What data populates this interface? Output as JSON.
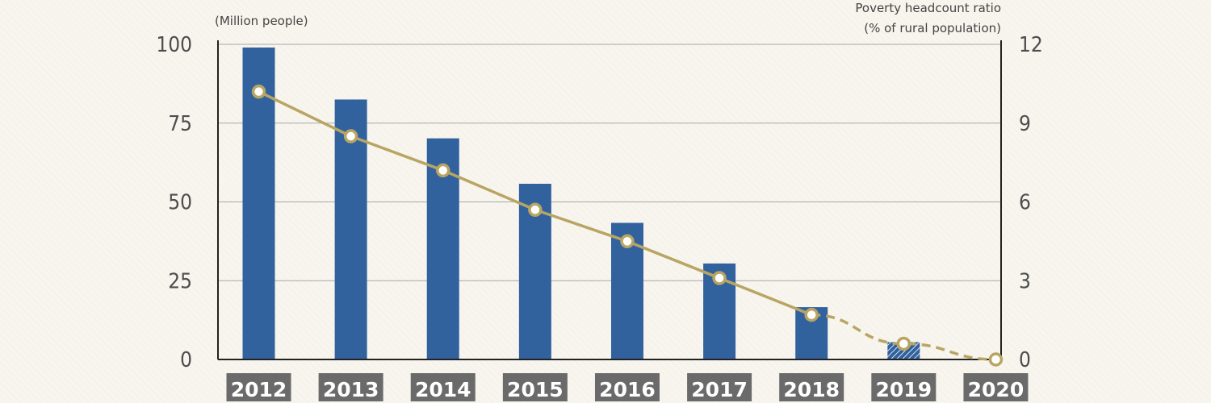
{
  "chart_data": {
    "type": "bar+line",
    "categories": [
      "2012",
      "2013",
      "2014",
      "2015",
      "2016",
      "2017",
      "2018",
      "2019",
      "2020"
    ],
    "left_axis": {
      "label": "(Million people)",
      "ticks": [
        "0",
        "25",
        "50",
        "75",
        "100"
      ],
      "ylim": [
        0,
        100
      ]
    },
    "right_axis": {
      "label_line1": "Poverty headcount ratio",
      "label_line2": "(% of rural population)",
      "ticks": [
        "0",
        "3",
        "6",
        "9",
        "12"
      ],
      "ylim": [
        0,
        12
      ]
    },
    "series": [
      {
        "kind": "bar",
        "values": [
          98.99,
          82.49,
          70.17,
          55.75,
          43.35,
          30.46,
          16.6,
          5.51,
          null
        ],
        "estimated_from_index": 7
      },
      {
        "kind": "line",
        "values": [
          10.2,
          8.5,
          7.2,
          5.7,
          4.5,
          3.1,
          1.7,
          0.6,
          0.0
        ],
        "dashed_from_index": 7
      }
    ],
    "grid": "horizontal",
    "colors": {
      "bar": "#31629e",
      "line": "#b9a563",
      "year_box": "#6a6a6a",
      "grid": "#a8a8a8",
      "axis": "#222222"
    }
  }
}
